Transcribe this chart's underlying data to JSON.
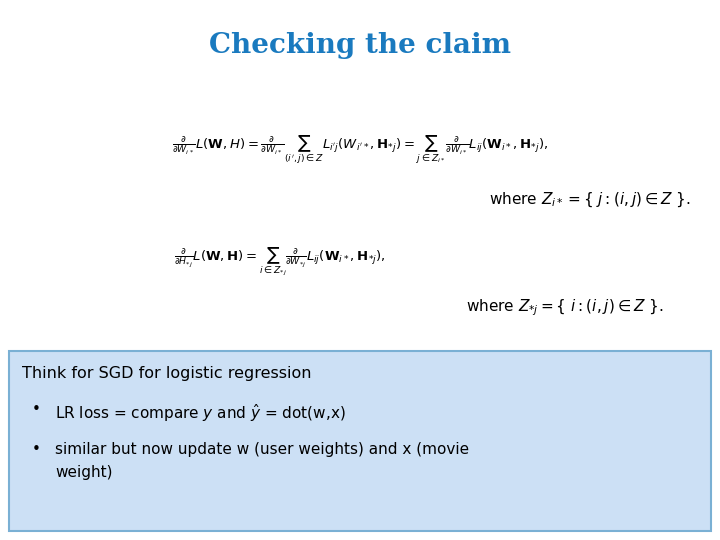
{
  "title": "Checking the claim",
  "title_color": "#1a7abf",
  "title_fontsize": 20,
  "bg_color": "#ffffff",
  "box_bg": "#cce0f5",
  "box_border": "#7ab0d4",
  "box_title": "Think for SGD for logistic regression",
  "box_bullet1": "LR loss = compare $y$ and $\\hat{y}$ = dot(w,x)",
  "box_bullet2": "similar but now update w (user weights) and x (movie\n      weight)"
}
